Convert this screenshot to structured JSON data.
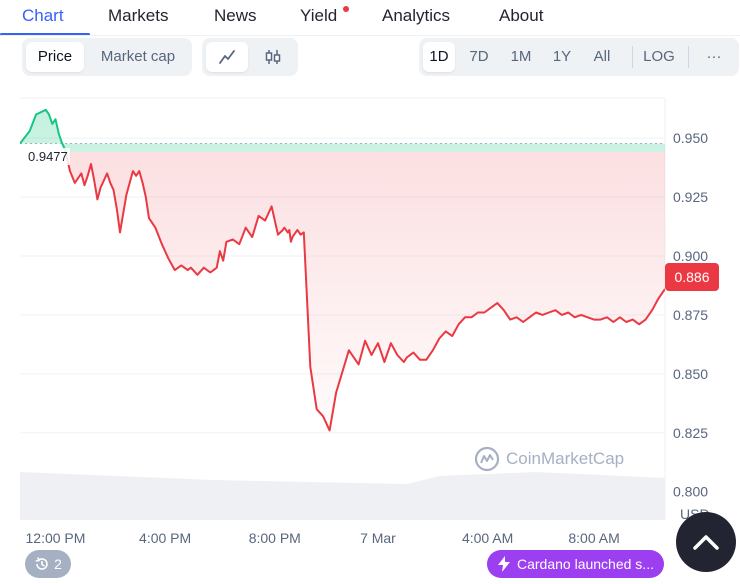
{
  "tabs": [
    {
      "label": "Chart",
      "active": true
    },
    {
      "label": "Markets"
    },
    {
      "label": "News"
    },
    {
      "label": "Yield",
      "has_dot": true
    },
    {
      "label": "Analytics"
    },
    {
      "label": "About"
    }
  ],
  "toolbar": {
    "metric": {
      "price": "Price",
      "market_cap": "Market cap",
      "selected": "Price"
    },
    "chart_style_icons": [
      "line-chart-icon",
      "candlestick-icon"
    ],
    "ranges": [
      "1D",
      "7D",
      "1M",
      "1Y",
      "All"
    ],
    "selected_range": "1D",
    "log_label": "LOG",
    "more_label": "···"
  },
  "colors": {
    "up": "#16c784",
    "down": "#ea3943",
    "accent": "#3861fb",
    "news_pill": "#9c3ff1"
  },
  "chart_data": {
    "type": "line",
    "y_ticks": [
      "0.950",
      "0.925",
      "0.900",
      "0.875",
      "0.850",
      "0.825",
      "0.800"
    ],
    "x_ticks": [
      "12:00 PM",
      "4:00 PM",
      "8:00 PM",
      "7 Mar",
      "4:00 AM",
      "8:00 AM"
    ],
    "ylim": [
      0.788,
      0.967
    ],
    "reference_price": 0.9477,
    "reference_label": "0.9477",
    "current_price_label": "0.886",
    "currency_label": "USD",
    "grid": true,
    "series": [
      {
        "x": [
          0,
          0.03,
          0.05,
          0.08,
          0.09,
          0.1,
          0.11,
          0.12,
          0.13,
          0.14,
          0.155,
          0.17,
          0.19,
          0.2,
          0.21,
          0.22,
          0.23,
          0.24,
          0.25,
          0.27,
          0.28,
          0.29,
          0.3,
          0.31,
          0.33,
          0.35,
          0.36,
          0.37,
          0.38,
          0.39,
          0.4,
          0.42,
          0.44,
          0.46,
          0.48,
          0.5,
          0.52,
          0.53,
          0.55,
          0.57,
          0.59,
          0.61,
          0.62,
          0.63,
          0.64,
          0.66,
          0.68,
          0.7,
          0.72,
          0.74,
          0.76,
          0.78,
          0.8,
          0.815,
          0.82,
          0.83,
          0.835,
          0.84,
          0.845,
          0.85,
          0.86,
          0.87,
          0.88,
          0.9,
          0.92,
          0.94,
          0.96,
          0.98,
          1.0,
          1.02,
          1.05,
          1.07,
          1.09,
          1.11,
          1.13,
          1.15,
          1.17,
          1.19,
          1.2,
          1.22,
          1.24,
          1.26,
          1.28,
          1.3,
          1.32,
          1.34,
          1.36,
          1.38,
          1.4,
          1.42,
          1.44,
          1.46,
          1.48,
          1.5,
          1.52,
          1.54,
          1.56,
          1.58,
          1.6,
          1.62,
          1.64,
          1.66,
          1.68,
          1.7,
          1.72,
          1.74,
          1.76,
          1.78,
          1.8,
          1.82,
          1.84,
          1.86,
          1.88,
          1.9,
          1.92,
          1.94,
          1.96,
          1.98,
          2.0
        ],
        "values": [
          0.9477,
          0.953,
          0.96,
          0.962,
          0.96,
          0.956,
          0.958,
          0.952,
          0.948,
          0.945,
          0.936,
          0.931,
          0.935,
          0.93,
          0.934,
          0.939,
          0.932,
          0.924,
          0.929,
          0.935,
          0.931,
          0.928,
          0.92,
          0.91,
          0.926,
          0.936,
          0.934,
          0.936,
          0.931,
          0.925,
          0.916,
          0.912,
          0.905,
          0.899,
          0.894,
          0.896,
          0.894,
          0.895,
          0.892,
          0.895,
          0.893,
          0.895,
          0.902,
          0.898,
          0.906,
          0.907,
          0.905,
          0.912,
          0.908,
          0.917,
          0.915,
          0.921,
          0.909,
          0.911,
          0.912,
          0.91,
          0.911,
          0.906,
          0.908,
          0.909,
          0.911,
          0.909,
          0.91,
          0.853,
          0.835,
          0.832,
          0.826,
          0.842,
          0.851,
          0.86,
          0.854,
          0.864,
          0.858,
          0.863,
          0.855,
          0.863,
          0.858,
          0.855,
          0.857,
          0.859,
          0.856,
          0.856,
          0.86,
          0.865,
          0.868,
          0.866,
          0.871,
          0.874,
          0.874,
          0.876,
          0.876,
          0.878,
          0.88,
          0.877,
          0.873,
          0.874,
          0.872,
          0.874,
          0.876,
          0.875,
          0.876,
          0.877,
          0.875,
          0.876,
          0.874,
          0.875,
          0.874,
          0.873,
          0.873,
          0.874,
          0.872,
          0.874,
          0.872,
          0.873,
          0.871,
          0.873,
          0.877,
          0.882,
          0.886
        ]
      }
    ],
    "x_tick_positions": [
      0.11,
      0.45,
      0.79,
      1.11,
      1.45,
      1.78
    ],
    "volume_level": 0.6
  },
  "watermark": "CoinMarketCap",
  "events": {
    "icon": "history-icon",
    "count": "2"
  },
  "news_pill": {
    "icon": "bolt-icon",
    "text": "Cardano launched s..."
  }
}
